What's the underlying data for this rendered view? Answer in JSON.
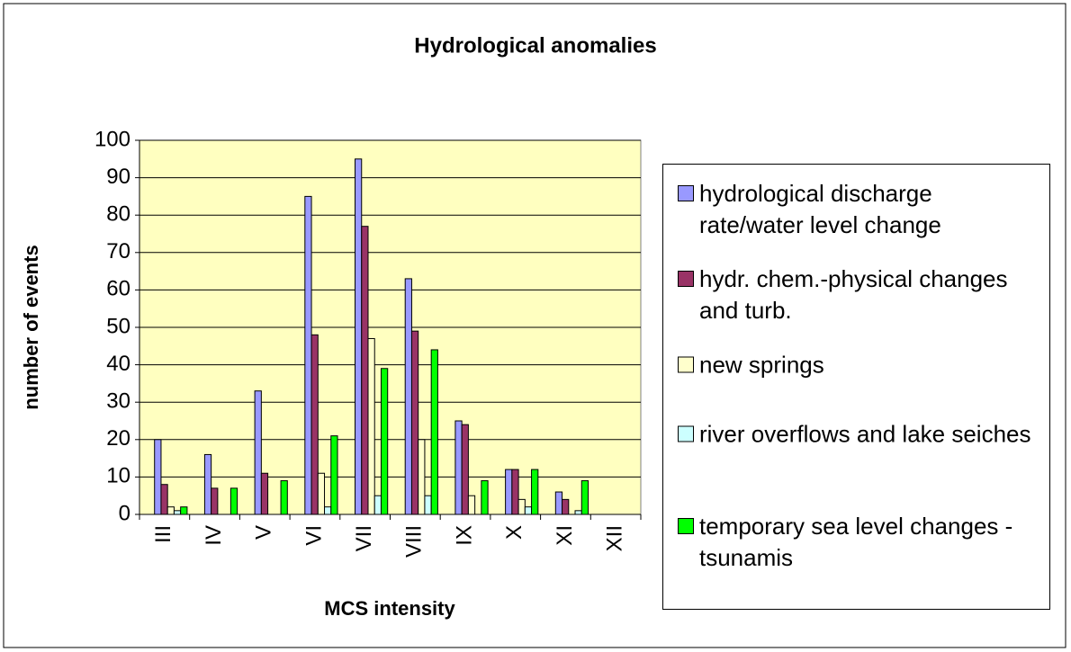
{
  "chart_data": {
    "type": "bar",
    "title": "Hydrological anomalies",
    "x_label": "MCS intensity",
    "y_label": "number of events",
    "categories": [
      "III",
      "IV",
      "V",
      "VI",
      "VII",
      "VIII",
      "IX",
      "X",
      "XI",
      "XII"
    ],
    "series": [
      {
        "name": "hydrological discharge rate/water level change",
        "color": "#9999ff",
        "values": [
          20,
          16,
          33,
          85,
          95,
          63,
          25,
          12,
          6,
          0
        ]
      },
      {
        "name": "hydr. chem.-physical changes and turb.",
        "color": "#993366",
        "values": [
          8,
          7,
          11,
          48,
          77,
          49,
          24,
          12,
          4,
          0
        ]
      },
      {
        "name": "new springs",
        "color": "#ffffcc",
        "values": [
          2,
          0,
          0,
          11,
          47,
          20,
          5,
          4,
          0,
          0
        ]
      },
      {
        "name": "river overflows and lake seiches",
        "color": "#ccffff",
        "values": [
          1,
          0,
          0,
          2,
          5,
          5,
          0,
          2,
          1,
          0
        ]
      },
      {
        "name": "temporary sea level changes - tsunamis",
        "color": "#00ff00",
        "values": [
          2,
          7,
          9,
          21,
          39,
          44,
          9,
          12,
          9,
          0
        ]
      }
    ],
    "ylim": [
      0,
      100
    ],
    "yticks": [
      0,
      10,
      20,
      30,
      40,
      50,
      60,
      70,
      80,
      90,
      100
    ],
    "grid": true,
    "legend": "right"
  }
}
